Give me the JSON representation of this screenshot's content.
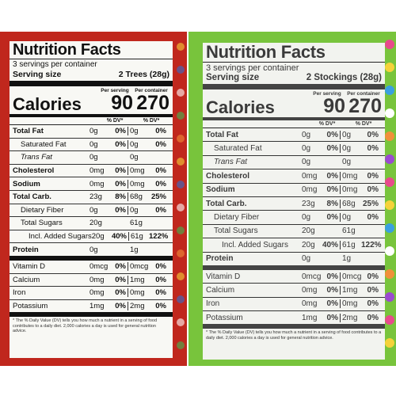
{
  "left": {
    "title": "Nutrition Facts",
    "servings": "3 servings per container",
    "serving_size_label": "Serving size",
    "serving_size_value": "2 Trees (28g)",
    "per_serving": "Per serving",
    "per_container": "Per container",
    "calories_label": "Calories",
    "calories_serving": "90",
    "calories_container": "270",
    "dv_label": "% DV*",
    "rows": [
      {
        "name": "Total Fat",
        "a1": "0g",
        "p1": "0%",
        "a2": "0g",
        "p2": "0%"
      },
      {
        "name": "Saturated Fat",
        "a1": "0g",
        "p1": "0%",
        "a2": "0g",
        "p2": "0%"
      },
      {
        "name": "Trans Fat",
        "a1": "0g",
        "p1": "",
        "a2": "0g",
        "p2": ""
      },
      {
        "name": "Cholesterol",
        "a1": "0mg",
        "p1": "0%",
        "a2": "0mg",
        "p2": "0%"
      },
      {
        "name": "Sodium",
        "a1": "0mg",
        "p1": "0%",
        "a2": "0mg",
        "p2": "0%"
      },
      {
        "name": "Total Carb.",
        "a1": "23g",
        "p1": "8%",
        "a2": "68g",
        "p2": "25%"
      },
      {
        "name": "Dietary Fiber",
        "a1": "0g",
        "p1": "0%",
        "a2": "0g",
        "p2": "0%"
      },
      {
        "name": "Total Sugars",
        "a1": "20g",
        "p1": "",
        "a2": "61g",
        "p2": ""
      },
      {
        "name": "Incl. Added Sugars",
        "a1": "20g",
        "p1": "40%",
        "a2": "61g",
        "p2": "122%"
      },
      {
        "name": "Protein",
        "a1": "0g",
        "p1": "",
        "a2": "1g",
        "p2": ""
      },
      {
        "name": "Vitamin D",
        "a1": "0mcg",
        "p1": "0%",
        "a2": "0mcg",
        "p2": "0%"
      },
      {
        "name": "Calcium",
        "a1": "0mg",
        "p1": "0%",
        "a2": "1mg",
        "p2": "0%"
      },
      {
        "name": "Iron",
        "a1": "0mg",
        "p1": "0%",
        "a2": "0mg",
        "p2": "0%"
      },
      {
        "name": "Potassium",
        "a1": "1mg",
        "p1": "0%",
        "a2": "2mg",
        "p2": "0%"
      }
    ],
    "footnote": "* The % Daily Value (DV) tells you how much a nutrient in a serving of food contributes to a daily diet. 2,000 calories a day is used for general nutrition advice."
  },
  "right": {
    "title": "Nutrition Facts",
    "servings": "3 servings per container",
    "serving_size_label": "Serving size",
    "serving_size_value": "2 Stockings (28g)",
    "per_serving": "Per serving",
    "per_container": "Per container",
    "calories_label": "Calories",
    "calories_serving": "90",
    "calories_container": "270",
    "dv_label": "% DV*",
    "rows": [
      {
        "name": "Total Fat",
        "a1": "0g",
        "p1": "0%",
        "a2": "0g",
        "p2": "0%"
      },
      {
        "name": "Saturated Fat",
        "a1": "0g",
        "p1": "0%",
        "a2": "0g",
        "p2": "0%"
      },
      {
        "name": "Trans Fat",
        "a1": "0g",
        "p1": "",
        "a2": "0g",
        "p2": ""
      },
      {
        "name": "Cholesterol",
        "a1": "0mg",
        "p1": "0%",
        "a2": "0mg",
        "p2": "0%"
      },
      {
        "name": "Sodium",
        "a1": "0mg",
        "p1": "0%",
        "a2": "0mg",
        "p2": "0%"
      },
      {
        "name": "Total Carb.",
        "a1": "23g",
        "p1": "8%",
        "a2": "68g",
        "p2": "25%"
      },
      {
        "name": "Dietary Fiber",
        "a1": "0g",
        "p1": "0%",
        "a2": "0g",
        "p2": "0%"
      },
      {
        "name": "Total Sugars",
        "a1": "20g",
        "p1": "",
        "a2": "61g",
        "p2": ""
      },
      {
        "name": "Incl. Added Sugars",
        "a1": "20g",
        "p1": "40%",
        "a2": "61g",
        "p2": "122%"
      },
      {
        "name": "Protein",
        "a1": "0g",
        "p1": "",
        "a2": "1g",
        "p2": ""
      },
      {
        "name": "Vitamin D",
        "a1": "0mcg",
        "p1": "0%",
        "a2": "0mcg",
        "p2": "0%"
      },
      {
        "name": "Calcium",
        "a1": "0mg",
        "p1": "0%",
        "a2": "1mg",
        "p2": "0%"
      },
      {
        "name": "Iron",
        "a1": "0mg",
        "p1": "0%",
        "a2": "0mg",
        "p2": "0%"
      },
      {
        "name": "Potassium",
        "a1": "1mg",
        "p1": "0%",
        "a2": "2mg",
        "p2": "0%"
      }
    ],
    "footnote": "* The % Daily Value (DV) tells you how much a nutrient in a serving of food contributes to a daily diet. 2,000 calories a day is used for general nutrition advice."
  },
  "colors": {
    "left_package": "#c0271d",
    "right_package": "#78c43c",
    "label_bg": "#f8f8f4"
  }
}
